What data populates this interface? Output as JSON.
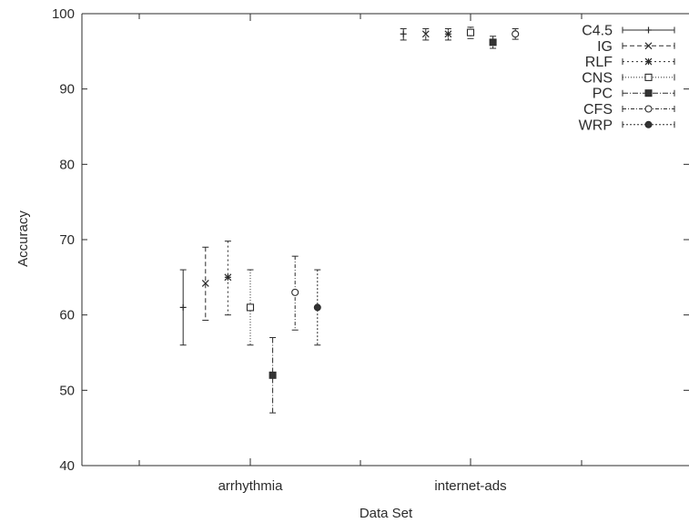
{
  "chart_data": {
    "type": "scatter",
    "title": "",
    "xlabel": "Data Set",
    "ylabel": "Accuracy",
    "ylim": [
      40,
      100
    ],
    "yticks": [
      "40",
      "50",
      "60",
      "70",
      "80",
      "90",
      "100"
    ],
    "categories": [
      "arrhythmia",
      "internet-ads"
    ],
    "grid": false,
    "legend_position": "top-right",
    "series": [
      {
        "name": "C4.5",
        "marker": "plus",
        "dash": "",
        "values": [
          {
            "category": "arrhythmia",
            "mean": 61,
            "low": 56,
            "high": 66
          },
          {
            "category": "internet-ads",
            "mean": 97.3,
            "low": 96.5,
            "high": 98
          }
        ]
      },
      {
        "name": "IG",
        "marker": "cross",
        "dash": "5,3",
        "values": [
          {
            "category": "arrhythmia",
            "mean": 64.2,
            "low": 59.3,
            "high": 69
          },
          {
            "category": "internet-ads",
            "mean": 97.3,
            "low": 96.5,
            "high": 98
          }
        ]
      },
      {
        "name": "RLF",
        "marker": "star",
        "dash": "2,3",
        "values": [
          {
            "category": "arrhythmia",
            "mean": 65,
            "low": 60,
            "high": 69.8
          },
          {
            "category": "internet-ads",
            "mean": 97.3,
            "low": 96.5,
            "high": 98
          }
        ]
      },
      {
        "name": "CNS",
        "marker": "square-open",
        "dash": "1,2",
        "values": [
          {
            "category": "arrhythmia",
            "mean": 61,
            "low": 56,
            "high": 66
          },
          {
            "category": "internet-ads",
            "mean": 97.5,
            "low": 96.7,
            "high": 98.2
          }
        ]
      },
      {
        "name": "PC",
        "marker": "square-filled",
        "dash": "6,2,1,2",
        "values": [
          {
            "category": "arrhythmia",
            "mean": 52,
            "low": 47,
            "high": 57
          },
          {
            "category": "internet-ads",
            "mean": 96.2,
            "low": 95.4,
            "high": 97
          }
        ]
      },
      {
        "name": "CFS",
        "marker": "circle-open",
        "dash": "4,2,1,2",
        "values": [
          {
            "category": "arrhythmia",
            "mean": 63,
            "low": 58,
            "high": 67.8
          },
          {
            "category": "internet-ads",
            "mean": 97.3,
            "low": 96.6,
            "high": 98
          }
        ]
      },
      {
        "name": "WRP",
        "marker": "circle-filled",
        "dash": "2,2",
        "values": [
          {
            "category": "arrhythmia",
            "mean": 61,
            "low": 56,
            "high": 66
          }
        ]
      }
    ]
  }
}
